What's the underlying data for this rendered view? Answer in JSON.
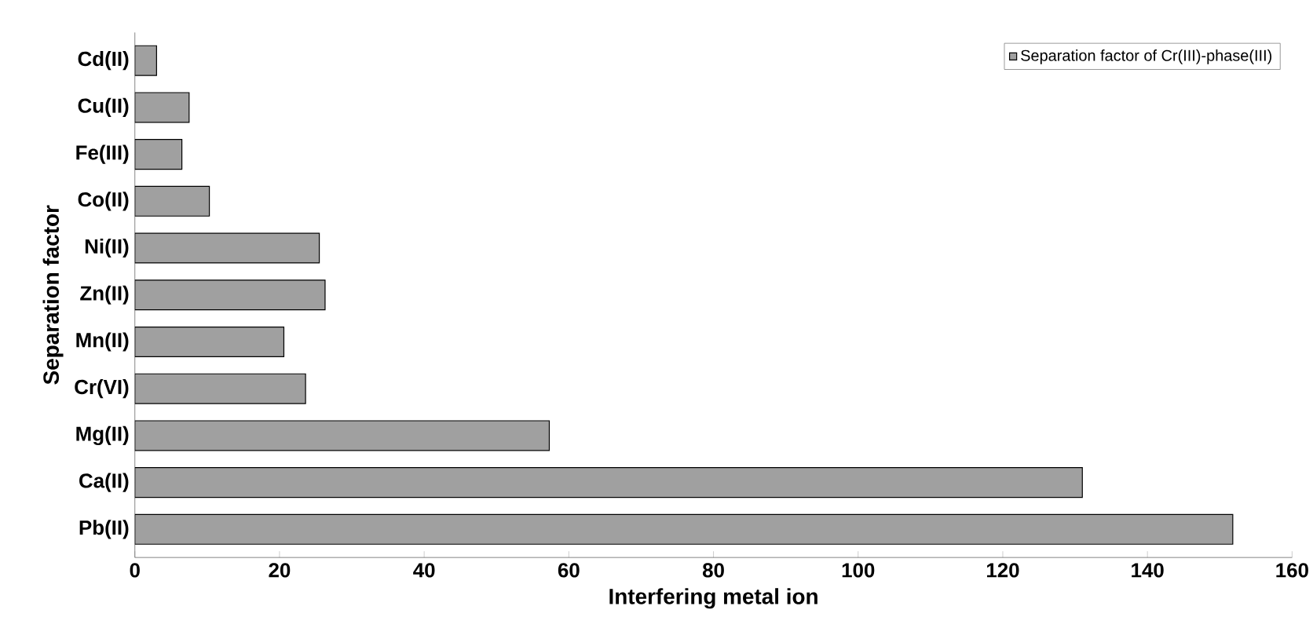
{
  "chart_data": {
    "type": "bar",
    "orientation": "horizontal",
    "xlabel": "Interfering metal ion",
    "ylabel": "Separation factor",
    "categories": [
      "Cd(II)",
      "Cu(II)",
      "Fe(III)",
      "Co(II)",
      "Ni(II)",
      "Zn(II)",
      "Mn(II)",
      "Cr(VI)",
      "Mg(II)",
      "Ca(II)",
      "Pb(II)"
    ],
    "series": [
      {
        "name": "Separation factor of Cr(III)-phase(III)",
        "color": "#a0a0a0",
        "values": [
          3,
          7.5,
          6.5,
          10.3,
          25.5,
          26.3,
          20.6,
          23.6,
          57.3,
          131,
          151.8
        ]
      }
    ],
    "xlim": [
      0,
      160
    ],
    "xticks": [
      0,
      20,
      40,
      60,
      80,
      100,
      120,
      140,
      160
    ],
    "legend": "top right",
    "grid": false
  }
}
